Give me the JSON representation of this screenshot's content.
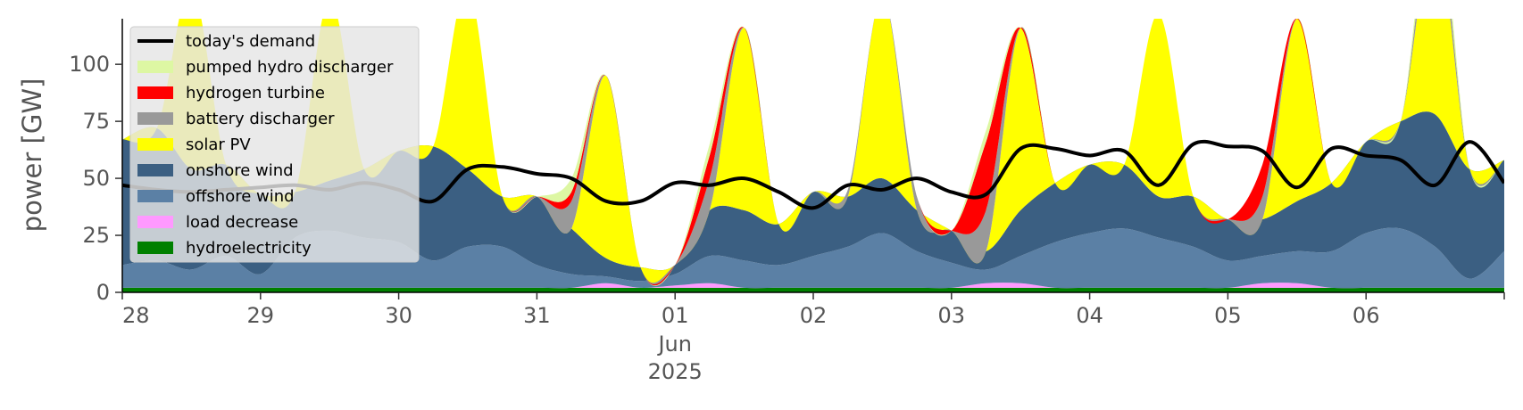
{
  "chart_data": {
    "type": "area",
    "title": "",
    "xlabel": "",
    "ylabel": "power [GW]",
    "ylim": [
      0,
      120
    ],
    "xlim": [
      "2025-05-28",
      "2025-06-07"
    ],
    "yticks": [
      0,
      25,
      50,
      75,
      100
    ],
    "x_tick_labels": [
      "28",
      "29",
      "30",
      "31",
      "01",
      "02",
      "03",
      "04",
      "05",
      "06"
    ],
    "x_month_label": "Jun",
    "x_year_label": "2025",
    "grid": false,
    "legend_position": "top-left",
    "x": [
      "2025-05-28 00:00",
      "2025-05-28 06:00",
      "2025-05-28 12:00",
      "2025-05-28 18:00",
      "2025-05-29 00:00",
      "2025-05-29 06:00",
      "2025-05-29 12:00",
      "2025-05-29 18:00",
      "2025-05-30 00:00",
      "2025-05-30 06:00",
      "2025-05-30 12:00",
      "2025-05-30 18:00",
      "2025-05-31 00:00",
      "2025-05-31 06:00",
      "2025-05-31 12:00",
      "2025-05-31 18:00",
      "2025-06-01 00:00",
      "2025-06-01 06:00",
      "2025-06-01 12:00",
      "2025-06-01 18:00",
      "2025-06-02 00:00",
      "2025-06-02 06:00",
      "2025-06-02 12:00",
      "2025-06-02 18:00",
      "2025-06-03 00:00",
      "2025-06-03 06:00",
      "2025-06-03 12:00",
      "2025-06-03 18:00",
      "2025-06-04 00:00",
      "2025-06-04 06:00",
      "2025-06-04 12:00",
      "2025-06-04 18:00",
      "2025-06-05 00:00",
      "2025-06-05 06:00",
      "2025-06-05 12:00",
      "2025-06-05 18:00",
      "2025-06-06 00:00",
      "2025-06-06 06:00",
      "2025-06-06 12:00",
      "2025-06-06 18:00",
      "2025-06-07 00:00"
    ],
    "series": [
      {
        "name": "hydroelectricity",
        "color": "#008000",
        "values": [
          2,
          2,
          2,
          2,
          2,
          2,
          2,
          2,
          2,
          2,
          2,
          2,
          2,
          2,
          2,
          2,
          2,
          2,
          2,
          2,
          2,
          2,
          2,
          2,
          2,
          2,
          2,
          2,
          2,
          2,
          2,
          2,
          2,
          2,
          2,
          2,
          2,
          2,
          2,
          2,
          2
        ]
      },
      {
        "name": "load decrease",
        "color": "#ff99ff",
        "values": [
          0,
          0,
          0,
          0,
          0,
          0,
          0,
          0,
          0,
          0,
          0,
          0,
          0,
          0,
          2,
          0,
          1,
          2,
          0,
          0,
          0,
          0,
          0,
          0,
          0,
          2,
          2,
          0,
          0,
          0,
          0,
          0,
          0,
          2,
          2,
          0,
          0,
          0,
          0,
          0,
          0
        ]
      },
      {
        "name": "offshore wind",
        "color": "#5b80a5",
        "values": [
          10,
          12,
          8,
          14,
          6,
          22,
          25,
          22,
          20,
          12,
          18,
          18,
          10,
          6,
          3,
          3,
          5,
          12,
          12,
          10,
          14,
          18,
          24,
          16,
          11,
          6,
          12,
          20,
          24,
          26,
          22,
          18,
          12,
          12,
          14,
          16,
          24,
          26,
          18,
          4,
          16
        ]
      },
      {
        "name": "onshore wind",
        "color": "#3b5f82",
        "values": [
          55,
          58,
          44,
          40,
          35,
          20,
          22,
          30,
          40,
          50,
          34,
          22,
          30,
          20,
          8,
          6,
          4,
          20,
          22,
          18,
          28,
          22,
          24,
          18,
          14,
          8,
          20,
          26,
          30,
          28,
          18,
          22,
          18,
          16,
          22,
          30,
          40,
          47,
          58,
          48,
          40
        ]
      },
      {
        "name": "solar PV",
        "color": "#ffff00",
        "values": [
          0,
          0,
          80,
          0,
          0,
          0,
          80,
          0,
          0,
          0,
          80,
          0,
          0,
          0,
          80,
          0,
          0,
          0,
          80,
          0,
          0,
          0,
          80,
          0,
          0,
          0,
          80,
          0,
          0,
          0,
          80,
          0,
          0,
          0,
          80,
          0,
          0,
          0,
          80,
          0,
          0
        ]
      },
      {
        "name": "battery discharger",
        "color": "#999999",
        "values": [
          0,
          0,
          0,
          0,
          0,
          0,
          0,
          0,
          0,
          0,
          0,
          0,
          0,
          12,
          0,
          0,
          0,
          14,
          0,
          0,
          0,
          3,
          0,
          6,
          0,
          18,
          0,
          0,
          0,
          0,
          0,
          0,
          0,
          10,
          0,
          0,
          0,
          0,
          10,
          0,
          0
        ]
      },
      {
        "name": "hydrogen turbine",
        "color": "#ff0000",
        "values": [
          0,
          0,
          0,
          0,
          0,
          0,
          0,
          0,
          0,
          0,
          0,
          0,
          0,
          4,
          0,
          0,
          0,
          10,
          0,
          0,
          0,
          0,
          0,
          0,
          0,
          30,
          0,
          0,
          0,
          0,
          0,
          0,
          0,
          14,
          0,
          0,
          0,
          0,
          0,
          0,
          0
        ]
      },
      {
        "name": "pumped hydro discharger",
        "color": "#ddf7a3",
        "values": [
          0,
          0,
          0,
          0,
          0,
          0,
          0,
          0,
          0,
          0,
          0,
          0,
          0,
          6,
          0,
          0,
          0,
          5,
          0,
          0,
          0,
          0,
          0,
          0,
          0,
          5,
          0,
          0,
          0,
          0,
          0,
          0,
          0,
          0,
          0,
          0,
          0,
          0,
          10,
          0,
          0
        ]
      }
    ],
    "demand": {
      "name": "today's demand",
      "color": "#000000",
      "values": [
        47,
        45,
        44,
        45,
        46,
        47,
        45,
        48,
        45,
        40,
        54,
        55,
        52,
        50,
        40,
        40,
        48,
        47,
        50,
        44,
        37,
        47,
        45,
        50,
        44,
        43,
        63,
        63,
        60,
        62,
        47,
        65,
        64,
        62,
        46,
        63,
        60,
        58,
        47,
        66,
        48
      ]
    },
    "legend_order": [
      "today's demand",
      "pumped hydro discharger",
      "hydrogen turbine",
      "battery discharger",
      "solar PV",
      "onshore wind",
      "offshore wind",
      "load decrease",
      "hydroelectricity"
    ]
  }
}
